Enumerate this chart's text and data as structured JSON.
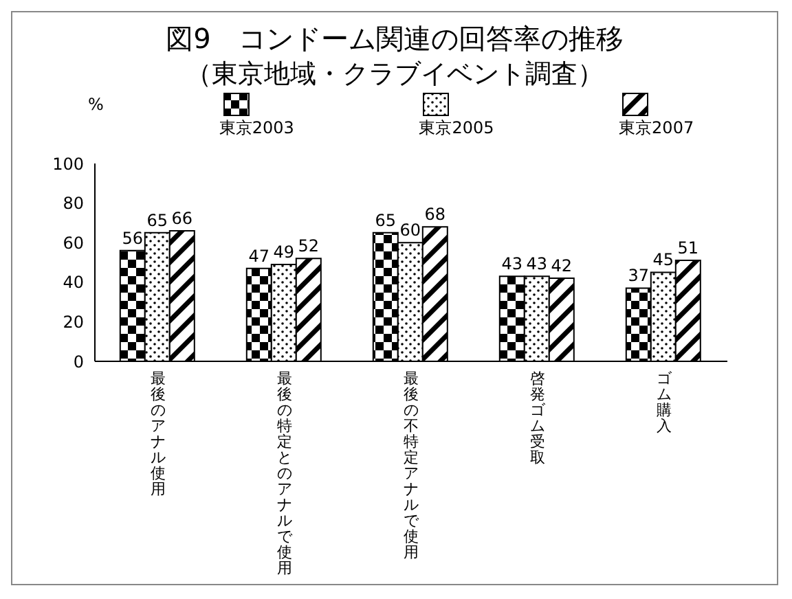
{
  "chart_data": {
    "type": "bar",
    "title": "図9　コンドーム関連の回答率の推移",
    "subtitle": "（東京地域・クラブイベント調査）",
    "ylabel": "%",
    "categories": [
      "最後のアナル使用",
      "最後の特定とのアナルで使用",
      "最後の不特定アナルで使用",
      "啓発ゴム受取",
      "ゴム購入"
    ],
    "series": [
      {
        "name": "東京2003",
        "color": "#000000",
        "values": [
          56,
          47,
          65,
          43,
          37
        ]
      },
      {
        "name": "東京2005",
        "color": "#000000",
        "values": [
          65,
          49,
          60,
          43,
          45
        ]
      },
      {
        "name": "東京2007",
        "color": "#000000",
        "values": [
          66,
          52,
          68,
          42,
          51
        ]
      }
    ],
    "ylim": [
      0,
      100
    ],
    "yticks": [
      0,
      20,
      40,
      60,
      80,
      100
    ],
    "grid": false,
    "legend": "top",
    "data_labels": true
  }
}
